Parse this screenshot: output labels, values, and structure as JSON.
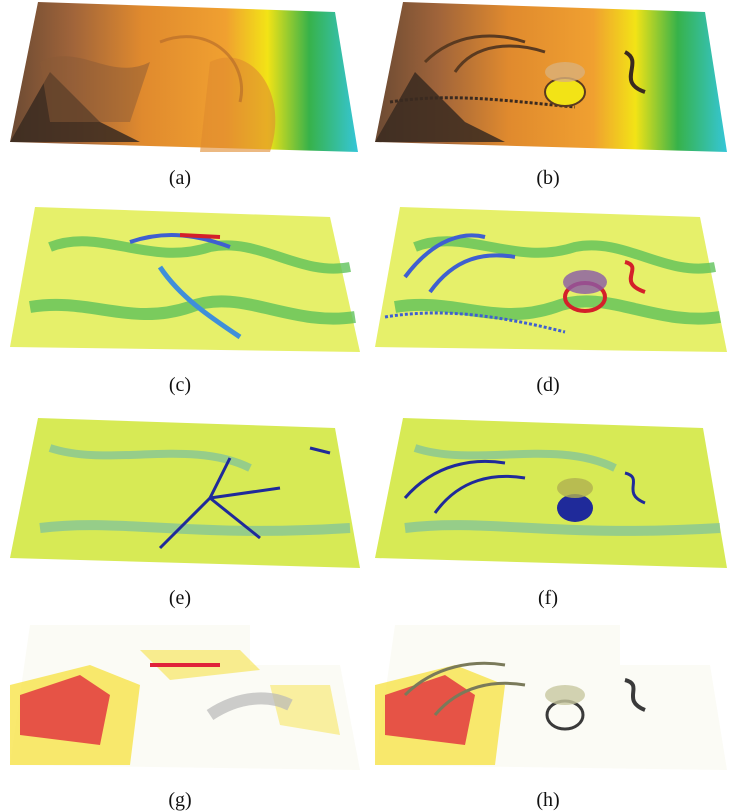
{
  "figure": {
    "panels": [
      {
        "id": "a",
        "caption": "(a)",
        "kind": "elevation",
        "modified": false
      },
      {
        "id": "b",
        "caption": "(b)",
        "kind": "elevation",
        "modified": true
      },
      {
        "id": "c",
        "caption": "(c)",
        "kind": "slope",
        "modified": false
      },
      {
        "id": "d",
        "caption": "(d)",
        "kind": "slope",
        "modified": true
      },
      {
        "id": "e",
        "caption": "(e)",
        "kind": "curvature",
        "modified": false
      },
      {
        "id": "f",
        "caption": "(f)",
        "kind": "curvature",
        "modified": true
      },
      {
        "id": "g",
        "caption": "(g)",
        "kind": "change",
        "modified": false
      },
      {
        "id": "h",
        "caption": "(h)",
        "kind": "change",
        "modified": true
      }
    ],
    "colors": {
      "elevation_dark": "#3a2a20",
      "elevation_orange": "#e08a2e",
      "elevation_yellow": "#f2e316",
      "elevation_green": "#37b24a",
      "elevation_cyan": "#35c6d8",
      "slope_yellow": "#e6f06a",
      "slope_green": "#5fc25a",
      "slope_blue": "#3f8fd9",
      "slope_red": "#d4202a",
      "curv_blue": "#1f2a9a",
      "change_red": "#e0223a",
      "change_yellow": "#f7e34a"
    }
  }
}
